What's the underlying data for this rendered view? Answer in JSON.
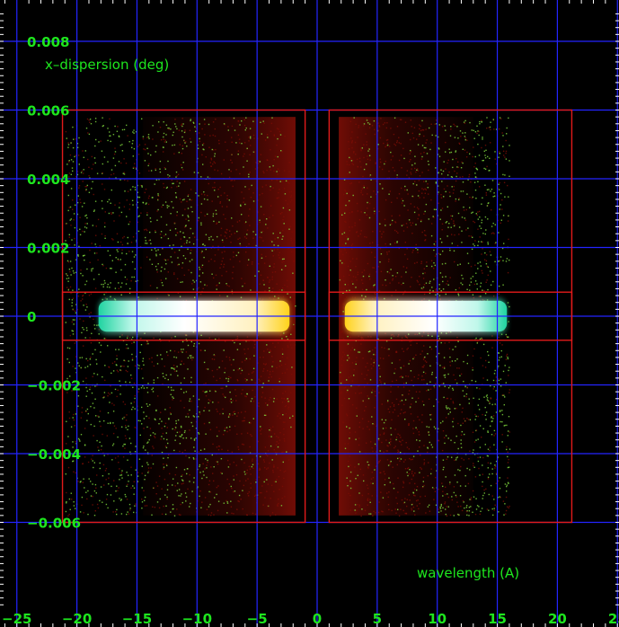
{
  "chart_data": {
    "type": "scatter",
    "title": "",
    "xlabel": "wavelength (A)",
    "ylabel": "x–dispersion (deg)",
    "xlim": [
      -26.0,
      26.5
    ],
    "ylim": [
      -0.0084,
      0.0088
    ],
    "x_ticks": [
      -25,
      -20,
      -15,
      -10,
      -5,
      0,
      5,
      10,
      15,
      20,
      25
    ],
    "x_tick_labels": [
      "−25",
      "−20",
      "−15",
      "−10",
      "−5",
      "0",
      "5",
      "10",
      "15",
      "20",
      "25"
    ],
    "y_ticks": [
      -0.006,
      -0.004,
      -0.002,
      0,
      0.002,
      0.004,
      0.006,
      0.008
    ],
    "y_tick_labels": [
      "−0.006",
      "−0.004",
      "−0.002",
      "0",
      "0.002",
      "0.004",
      "0.006",
      "0.008"
    ],
    "grid": true,
    "background": "#000000",
    "colors": {
      "grid": "#2424ff",
      "labels": "#1ee61e",
      "regions": "#e01a1a",
      "scatter_outer": "#7bd13b",
      "scatter_inner": "#7a0d05",
      "band_core": "#ffffff",
      "band_edge": "#33e6b0",
      "band_inner": "#ffd21a"
    },
    "regions": [
      {
        "name": "negative-order-box",
        "x": [
          -21.2,
          -1.0
        ],
        "y": [
          -0.006,
          0.006
        ]
      },
      {
        "name": "positive-order-box",
        "x": [
          1.0,
          21.2
        ],
        "y": [
          -0.006,
          0.006
        ]
      },
      {
        "name": "negative-order-band",
        "x": [
          -21.2,
          -1.0
        ],
        "y": [
          -0.0007,
          0.0007
        ]
      },
      {
        "name": "positive-order-band",
        "x": [
          1.0,
          21.2
        ],
        "y": [
          -0.0007,
          0.0007
        ]
      }
    ],
    "series": [
      {
        "type": "scatter",
        "x_range": [
          -21.0,
          -1.8
        ],
        "y_range": [
          -0.0058,
          0.0058
        ],
        "density": "uniform, denser toward center"
      },
      {
        "type": "scatter",
        "x_range": [
          1.8,
          16.0
        ],
        "y_range": [
          -0.0058,
          0.0058
        ],
        "density": "uniform, denser toward center"
      },
      {
        "type": "band",
        "x_range": [
          -18.2,
          -2.3
        ],
        "y_range": [
          -0.00045,
          0.00045
        ],
        "gradient": [
          "cyan-green",
          "white",
          "yellow"
        ]
      },
      {
        "type": "band",
        "x_range": [
          2.3,
          15.8
        ],
        "y_range": [
          -0.00045,
          0.00045
        ],
        "gradient": [
          "yellow",
          "white",
          "cyan-green"
        ]
      }
    ]
  }
}
